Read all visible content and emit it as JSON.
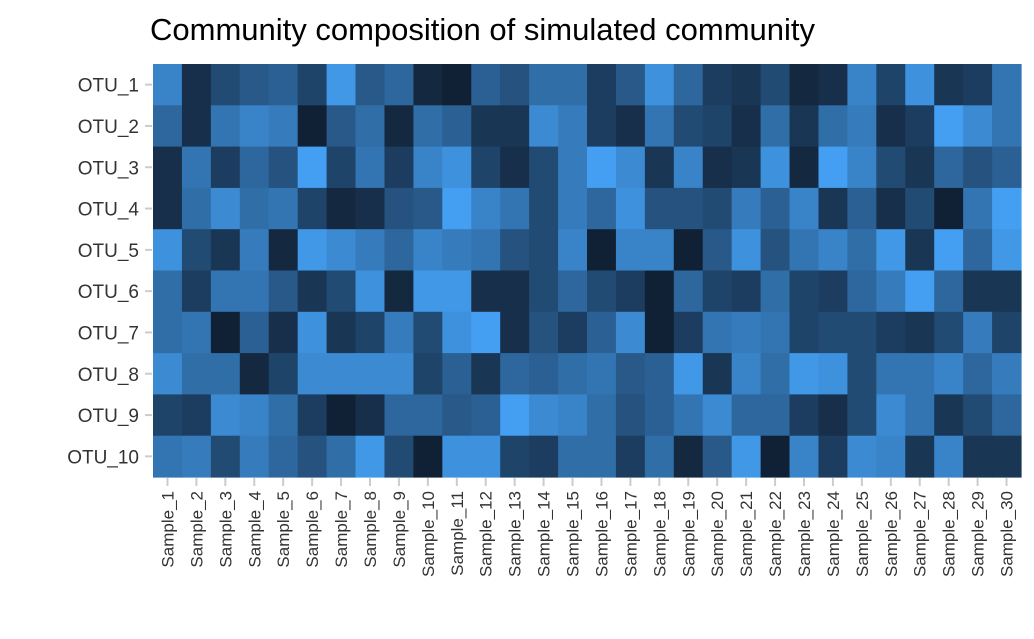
{
  "chart_data": {
    "type": "heatmap",
    "title": "Community composition of simulated community",
    "xlabel": "",
    "ylabel": "",
    "rows": [
      "OTU_1",
      "OTU_2",
      "OTU_3",
      "OTU_4",
      "OTU_5",
      "OTU_6",
      "OTU_7",
      "OTU_8",
      "OTU_9",
      "OTU_10"
    ],
    "columns": [
      "Sample_1",
      "Sample_2",
      "Sample_3",
      "Sample_4",
      "Sample_5",
      "Sample_6",
      "Sample_7",
      "Sample_8",
      "Sample_9",
      "Sample_10",
      "Sample_11",
      "Sample_12",
      "Sample_13",
      "Sample_14",
      "Sample_15",
      "Sample_16",
      "Sample_17",
      "Sample_18",
      "Sample_19",
      "Sample_20",
      "Sample_21",
      "Sample_22",
      "Sample_23",
      "Sample_24",
      "Sample_25",
      "Sample_26",
      "Sample_27",
      "Sample_28",
      "Sample_29",
      "Sample_30"
    ],
    "values": [
      [
        0.75,
        0.15,
        0.35,
        0.45,
        0.5,
        0.3,
        0.9,
        0.45,
        0.55,
        0.1,
        0.05,
        0.5,
        0.4,
        0.6,
        0.6,
        0.25,
        0.45,
        0.85,
        0.55,
        0.25,
        0.2,
        0.35,
        0.1,
        0.15,
        0.75,
        0.3,
        0.85,
        0.2,
        0.25,
        0.65
      ],
      [
        0.55,
        0.15,
        0.65,
        0.75,
        0.7,
        0.05,
        0.45,
        0.6,
        0.1,
        0.6,
        0.5,
        0.2,
        0.2,
        0.8,
        0.7,
        0.25,
        0.15,
        0.65,
        0.35,
        0.3,
        0.15,
        0.6,
        0.2,
        0.6,
        0.7,
        0.15,
        0.25,
        0.95,
        0.8,
        0.65
      ],
      [
        0.15,
        0.65,
        0.25,
        0.55,
        0.4,
        0.95,
        0.3,
        0.65,
        0.25,
        0.75,
        0.85,
        0.3,
        0.15,
        0.35,
        0.7,
        0.95,
        0.8,
        0.2,
        0.75,
        0.15,
        0.2,
        0.85,
        0.1,
        0.95,
        0.75,
        0.35,
        0.2,
        0.55,
        0.4,
        0.5
      ],
      [
        0.15,
        0.6,
        0.8,
        0.6,
        0.65,
        0.3,
        0.1,
        0.15,
        0.4,
        0.45,
        0.95,
        0.75,
        0.65,
        0.35,
        0.7,
        0.55,
        0.85,
        0.4,
        0.4,
        0.35,
        0.7,
        0.5,
        0.75,
        0.2,
        0.5,
        0.15,
        0.35,
        0.05,
        0.65,
        0.95
      ],
      [
        0.85,
        0.35,
        0.2,
        0.7,
        0.1,
        0.9,
        0.8,
        0.7,
        0.55,
        0.75,
        0.7,
        0.65,
        0.4,
        0.35,
        0.75,
        0.05,
        0.75,
        0.75,
        0.05,
        0.45,
        0.85,
        0.4,
        0.65,
        0.75,
        0.6,
        0.9,
        0.2,
        0.95,
        0.55,
        0.9
      ],
      [
        0.6,
        0.25,
        0.65,
        0.65,
        0.45,
        0.2,
        0.35,
        0.85,
        0.1,
        0.9,
        0.9,
        0.15,
        0.15,
        0.35,
        0.55,
        0.35,
        0.25,
        0.05,
        0.55,
        0.3,
        0.25,
        0.6,
        0.3,
        0.25,
        0.55,
        0.7,
        0.95,
        0.55,
        0.2,
        0.2
      ],
      [
        0.6,
        0.65,
        0.05,
        0.5,
        0.15,
        0.85,
        0.2,
        0.3,
        0.7,
        0.35,
        0.85,
        0.95,
        0.15,
        0.4,
        0.25,
        0.5,
        0.8,
        0.05,
        0.25,
        0.65,
        0.7,
        0.65,
        0.3,
        0.35,
        0.35,
        0.25,
        0.2,
        0.35,
        0.7,
        0.3
      ],
      [
        0.8,
        0.6,
        0.6,
        0.1,
        0.3,
        0.8,
        0.8,
        0.8,
        0.8,
        0.3,
        0.5,
        0.2,
        0.55,
        0.5,
        0.6,
        0.65,
        0.45,
        0.5,
        0.9,
        0.2,
        0.75,
        0.6,
        0.9,
        0.85,
        0.35,
        0.65,
        0.65,
        0.75,
        0.55,
        0.7
      ],
      [
        0.3,
        0.25,
        0.8,
        0.75,
        0.6,
        0.25,
        0.05,
        0.15,
        0.55,
        0.55,
        0.45,
        0.5,
        0.95,
        0.8,
        0.75,
        0.6,
        0.4,
        0.5,
        0.65,
        0.8,
        0.55,
        0.55,
        0.25,
        0.15,
        0.35,
        0.8,
        0.65,
        0.2,
        0.35,
        0.55
      ],
      [
        0.65,
        0.7,
        0.35,
        0.7,
        0.55,
        0.4,
        0.6,
        0.9,
        0.35,
        0.05,
        0.85,
        0.85,
        0.3,
        0.25,
        0.6,
        0.6,
        0.25,
        0.6,
        0.1,
        0.45,
        0.9,
        0.05,
        0.75,
        0.25,
        0.8,
        0.75,
        0.2,
        0.75,
        0.2,
        0.2
      ]
    ],
    "color_low": "#0e1a2b",
    "color_high": "#47a6fc",
    "grid": false,
    "legend": "none"
  }
}
